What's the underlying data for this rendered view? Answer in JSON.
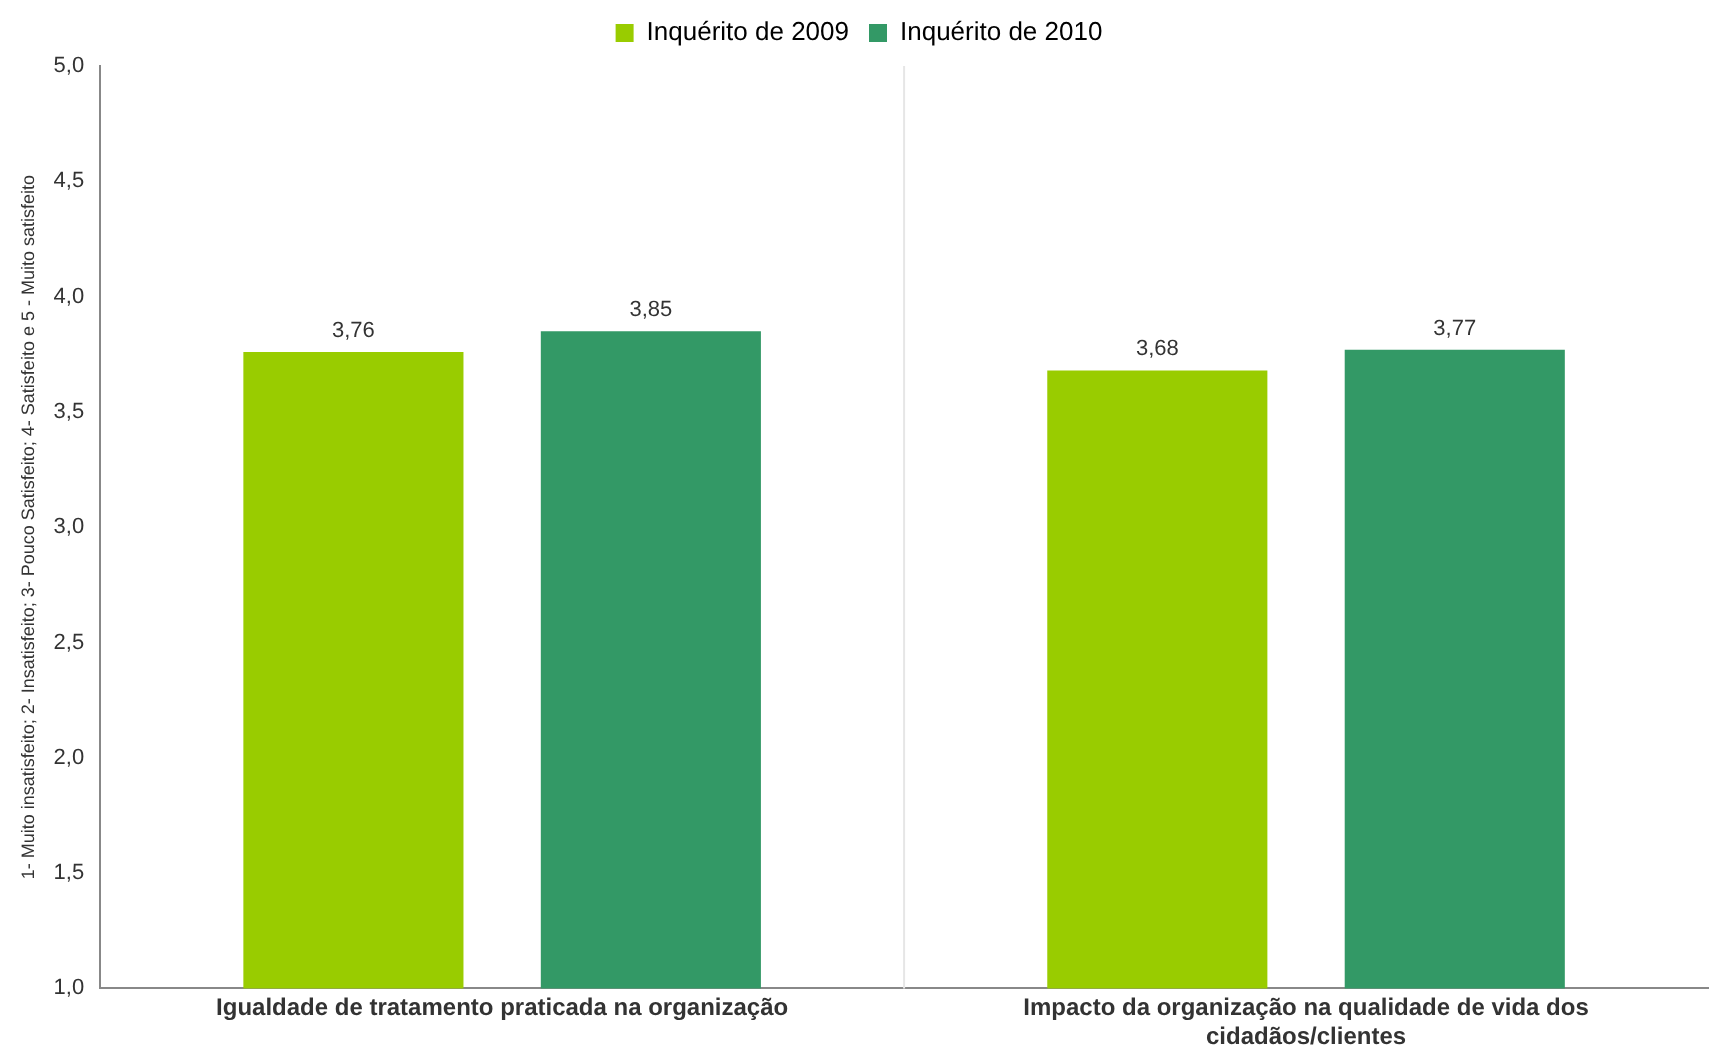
{
  "chart_data": {
    "type": "bar",
    "ylabel": "1- Muito insatisfeito; 2- Insatisfeito; 3- Pouco Satisfeito; 4- Satisfeito e 5 - Muito satisfeito",
    "categories": [
      "Igualdade de tratamento praticada na organização",
      "Impacto da organização na qualidade de vida dos cidadãos/clientes"
    ],
    "series": [
      {
        "name": "Inquérito de 2009",
        "color": "#99cc00",
        "values": [
          3.76,
          3.68
        ],
        "value_labels": [
          "3,76",
          "3,68"
        ]
      },
      {
        "name": "Inquérito de 2010",
        "color": "#339966",
        "values": [
          3.85,
          3.77
        ],
        "value_labels": [
          "3,85",
          "3,77"
        ]
      }
    ],
    "ylim": [
      1.0,
      5.0
    ],
    "yticks": [
      {
        "value": 1.0,
        "label": "1,0"
      },
      {
        "value": 1.5,
        "label": "1,5"
      },
      {
        "value": 2.0,
        "label": "2,0"
      },
      {
        "value": 2.5,
        "label": "2,5"
      },
      {
        "value": 3.0,
        "label": "3,0"
      },
      {
        "value": 3.5,
        "label": "3,5"
      },
      {
        "value": 4.0,
        "label": "4,0"
      },
      {
        "value": 4.5,
        "label": "4,5"
      },
      {
        "value": 5.0,
        "label": "5,0"
      }
    ],
    "grid": false,
    "legend": "top"
  }
}
